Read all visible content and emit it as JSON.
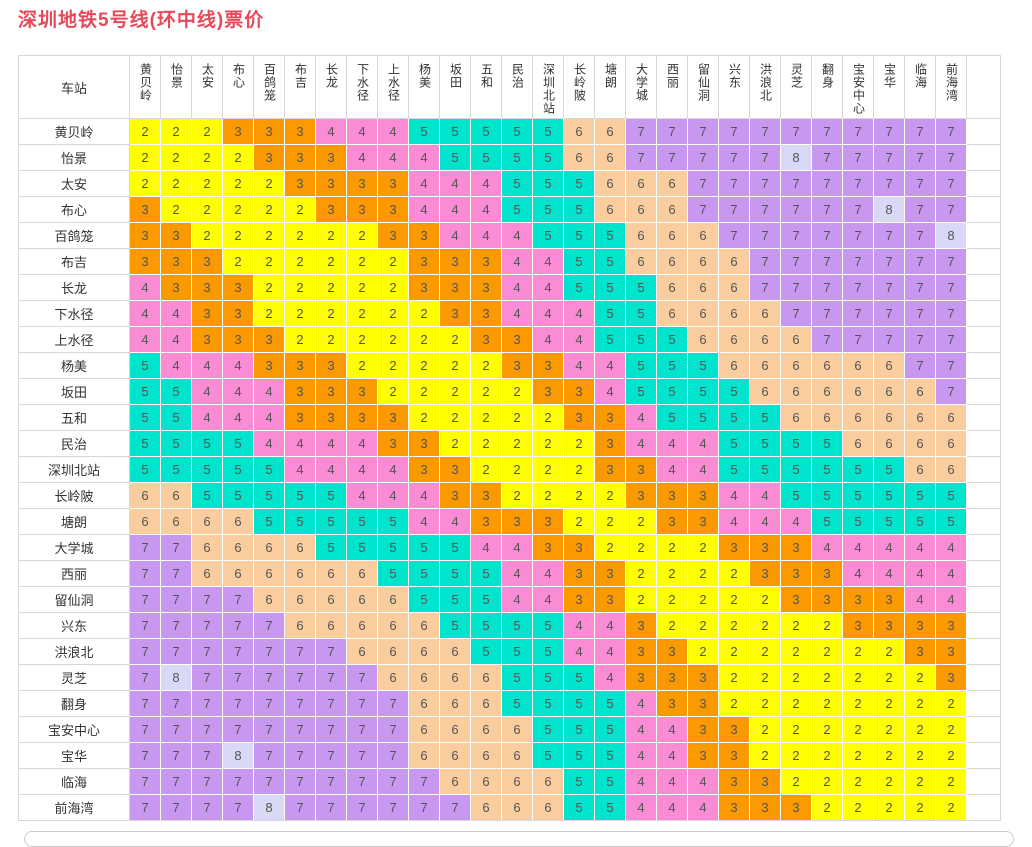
{
  "page": {
    "title": "深圳地铁5号线(环中线)票价",
    "title_color": "#E8495A"
  },
  "table": {
    "corner_header": "车站"
  },
  "chart_data": {
    "type": "heatmap",
    "title": "深圳地铁5号线(环中线)票价",
    "row_label_header": "车站",
    "value_label": "票价(元)",
    "stations": [
      "黄贝岭",
      "怡景",
      "太安",
      "布心",
      "百鸽笼",
      "布吉",
      "长龙",
      "下水径",
      "上水径",
      "杨美",
      "坂田",
      "五和",
      "民治",
      "深圳北站",
      "长岭陂",
      "塘朗",
      "大学城",
      "西丽",
      "留仙洞",
      "兴东",
      "洪浪北",
      "灵芝",
      "翻身",
      "宝安中心",
      "宝华",
      "临海",
      "前海湾"
    ],
    "values": [
      [
        2,
        2,
        2,
        3,
        3,
        3,
        4,
        4,
        4,
        5,
        5,
        5,
        5,
        5,
        6,
        6,
        7,
        7,
        7,
        7,
        7,
        7,
        7,
        7,
        7,
        7,
        7
      ],
      [
        2,
        2,
        2,
        2,
        3,
        3,
        3,
        4,
        4,
        4,
        5,
        5,
        5,
        5,
        6,
        6,
        7,
        7,
        7,
        7,
        7,
        8,
        7,
        7,
        7,
        7,
        7
      ],
      [
        2,
        2,
        2,
        2,
        2,
        3,
        3,
        3,
        3,
        4,
        4,
        4,
        5,
        5,
        5,
        6,
        6,
        6,
        7,
        7,
        7,
        7,
        7,
        7,
        7,
        7,
        7
      ],
      [
        3,
        2,
        2,
        2,
        2,
        2,
        3,
        3,
        3,
        4,
        4,
        4,
        5,
        5,
        5,
        6,
        6,
        6,
        7,
        7,
        7,
        7,
        7,
        7,
        8,
        7,
        7
      ],
      [
        3,
        3,
        2,
        2,
        2,
        2,
        2,
        2,
        3,
        3,
        4,
        4,
        4,
        5,
        5,
        5,
        6,
        6,
        6,
        7,
        7,
        7,
        7,
        7,
        7,
        7,
        8
      ],
      [
        3,
        3,
        3,
        2,
        2,
        2,
        2,
        2,
        2,
        3,
        3,
        3,
        4,
        4,
        5,
        5,
        6,
        6,
        6,
        6,
        7,
        7,
        7,
        7,
        7,
        7,
        7
      ],
      [
        4,
        3,
        3,
        3,
        2,
        2,
        2,
        2,
        2,
        3,
        3,
        3,
        4,
        4,
        5,
        5,
        5,
        6,
        6,
        6,
        7,
        7,
        7,
        7,
        7,
        7,
        7
      ],
      [
        4,
        4,
        3,
        3,
        2,
        2,
        2,
        2,
        2,
        2,
        3,
        3,
        4,
        4,
        4,
        5,
        5,
        6,
        6,
        6,
        6,
        7,
        7,
        7,
        7,
        7,
        7
      ],
      [
        4,
        4,
        3,
        3,
        3,
        2,
        2,
        2,
        2,
        2,
        2,
        3,
        3,
        4,
        4,
        5,
        5,
        5,
        6,
        6,
        6,
        6,
        7,
        7,
        7,
        7,
        7
      ],
      [
        5,
        4,
        4,
        4,
        3,
        3,
        3,
        2,
        2,
        2,
        2,
        2,
        3,
        3,
        4,
        4,
        5,
        5,
        5,
        6,
        6,
        6,
        6,
        6,
        6,
        7,
        7
      ],
      [
        5,
        5,
        4,
        4,
        4,
        3,
        3,
        3,
        2,
        2,
        2,
        2,
        2,
        3,
        3,
        4,
        5,
        5,
        5,
        5,
        6,
        6,
        6,
        6,
        6,
        6,
        7
      ],
      [
        5,
        5,
        4,
        4,
        4,
        3,
        3,
        3,
        3,
        2,
        2,
        2,
        2,
        2,
        3,
        3,
        4,
        5,
        5,
        5,
        5,
        6,
        6,
        6,
        6,
        6,
        6
      ],
      [
        5,
        5,
        5,
        5,
        4,
        4,
        4,
        4,
        3,
        3,
        2,
        2,
        2,
        2,
        2,
        3,
        4,
        4,
        4,
        5,
        5,
        5,
        5,
        6,
        6,
        6,
        6
      ],
      [
        5,
        5,
        5,
        5,
        5,
        4,
        4,
        4,
        4,
        3,
        3,
        2,
        2,
        2,
        2,
        3,
        3,
        4,
        4,
        5,
        5,
        5,
        5,
        5,
        5,
        6,
        6
      ],
      [
        6,
        6,
        5,
        5,
        5,
        5,
        5,
        4,
        4,
        4,
        3,
        3,
        2,
        2,
        2,
        2,
        3,
        3,
        3,
        4,
        4,
        5,
        5,
        5,
        5,
        5,
        5
      ],
      [
        6,
        6,
        6,
        6,
        5,
        5,
        5,
        5,
        5,
        4,
        4,
        3,
        3,
        3,
        2,
        2,
        2,
        3,
        3,
        4,
        4,
        4,
        5,
        5,
        5,
        5,
        5
      ],
      [
        7,
        7,
        6,
        6,
        6,
        6,
        5,
        5,
        5,
        5,
        5,
        4,
        4,
        3,
        3,
        2,
        2,
        2,
        2,
        3,
        3,
        3,
        4,
        4,
        4,
        4,
        4
      ],
      [
        7,
        7,
        6,
        6,
        6,
        6,
        6,
        6,
        5,
        5,
        5,
        5,
        4,
        4,
        3,
        3,
        2,
        2,
        2,
        2,
        3,
        3,
        3,
        4,
        4,
        4,
        4
      ],
      [
        7,
        7,
        7,
        7,
        6,
        6,
        6,
        6,
        6,
        5,
        5,
        5,
        4,
        4,
        3,
        3,
        2,
        2,
        2,
        2,
        2,
        3,
        3,
        3,
        3,
        4,
        4
      ],
      [
        7,
        7,
        7,
        7,
        7,
        6,
        6,
        6,
        6,
        6,
        5,
        5,
        5,
        5,
        4,
        4,
        3,
        2,
        2,
        2,
        2,
        2,
        2,
        3,
        3,
        3,
        3
      ],
      [
        7,
        7,
        7,
        7,
        7,
        7,
        7,
        6,
        6,
        6,
        6,
        5,
        5,
        5,
        4,
        4,
        3,
        3,
        2,
        2,
        2,
        2,
        2,
        2,
        2,
        3,
        3
      ],
      [
        7,
        8,
        7,
        7,
        7,
        7,
        7,
        7,
        6,
        6,
        6,
        6,
        5,
        5,
        5,
        4,
        3,
        3,
        3,
        2,
        2,
        2,
        2,
        2,
        2,
        2,
        3
      ],
      [
        7,
        7,
        7,
        7,
        7,
        7,
        7,
        7,
        7,
        6,
        6,
        6,
        5,
        5,
        5,
        5,
        4,
        3,
        3,
        2,
        2,
        2,
        2,
        2,
        2,
        2,
        2
      ],
      [
        7,
        7,
        7,
        7,
        7,
        7,
        7,
        7,
        7,
        6,
        6,
        6,
        6,
        5,
        5,
        5,
        4,
        4,
        3,
        3,
        2,
        2,
        2,
        2,
        2,
        2,
        2
      ],
      [
        7,
        7,
        7,
        8,
        7,
        7,
        7,
        7,
        7,
        6,
        6,
        6,
        6,
        5,
        5,
        5,
        4,
        4,
        3,
        3,
        2,
        2,
        2,
        2,
        2,
        2,
        2
      ],
      [
        7,
        7,
        7,
        7,
        7,
        7,
        7,
        7,
        7,
        7,
        6,
        6,
        6,
        6,
        5,
        5,
        4,
        4,
        4,
        3,
        3,
        2,
        2,
        2,
        2,
        2,
        2
      ],
      [
        7,
        7,
        7,
        7,
        8,
        7,
        7,
        7,
        7,
        7,
        7,
        6,
        6,
        6,
        5,
        5,
        4,
        4,
        4,
        3,
        3,
        3,
        2,
        2,
        2,
        2,
        2
      ]
    ],
    "legend": {
      "2": "#FFFF00",
      "3": "#FB9900",
      "4": "#FA8CD6",
      "5": "#00E3CC",
      "6": "#FACD9E",
      "7": "#C897F0",
      "8": "#D9D8F6"
    },
    "cell_text_color": "#555555",
    "grid": "white gaps between colored cells, light gray table frame",
    "legend_position": "none"
  }
}
